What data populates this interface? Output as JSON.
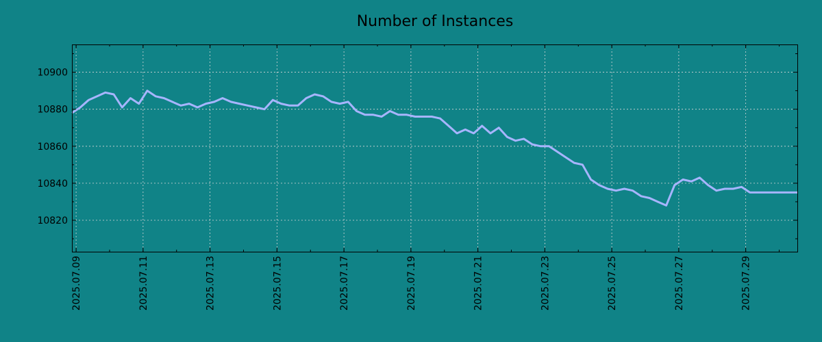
{
  "chart_data": {
    "type": "line",
    "title": "Number of Instances",
    "xlabel": "",
    "ylabel": "",
    "grid": true,
    "colors": {
      "background": "#108387",
      "line": "#a7b5ff",
      "grid": "#d8d8d8"
    },
    "ylim": [
      10803,
      10915
    ],
    "yticks": [
      10820,
      10840,
      10860,
      10880,
      10900
    ],
    "xlim": [
      "2025-07-08 21:00",
      "2025-07-30 13:00"
    ],
    "xticks": [
      "2025.07.09",
      "2025.07.11",
      "2025.07.13",
      "2025.07.15",
      "2025.07.17",
      "2025.07.19",
      "2025.07.21",
      "2025.07.23",
      "2025.07.25",
      "2025.07.27",
      "2025.07.29"
    ],
    "series": [
      {
        "x": [
          "2025-07-08 21:00",
          "2025-07-09 03:00",
          "2025-07-09 09:00",
          "2025-07-09 15:00",
          "2025-07-09 21:00",
          "2025-07-10 03:00",
          "2025-07-10 09:00",
          "2025-07-10 15:00",
          "2025-07-10 21:00",
          "2025-07-11 03:00",
          "2025-07-11 09:00",
          "2025-07-11 15:00",
          "2025-07-11 21:00",
          "2025-07-12 03:00",
          "2025-07-12 09:00",
          "2025-07-12 15:00",
          "2025-07-12 21:00",
          "2025-07-13 03:00",
          "2025-07-13 09:00",
          "2025-07-13 15:00",
          "2025-07-13 21:00",
          "2025-07-14 03:00",
          "2025-07-14 09:00",
          "2025-07-14 15:00",
          "2025-07-14 21:00",
          "2025-07-15 03:00",
          "2025-07-15 09:00",
          "2025-07-15 15:00",
          "2025-07-15 21:00",
          "2025-07-16 03:00",
          "2025-07-16 09:00",
          "2025-07-16 15:00",
          "2025-07-16 21:00",
          "2025-07-17 03:00",
          "2025-07-17 09:00",
          "2025-07-17 15:00",
          "2025-07-17 21:00",
          "2025-07-18 03:00",
          "2025-07-18 09:00",
          "2025-07-18 15:00",
          "2025-07-18 21:00",
          "2025-07-19 03:00",
          "2025-07-19 09:00",
          "2025-07-19 15:00",
          "2025-07-19 21:00",
          "2025-07-20 03:00",
          "2025-07-20 09:00",
          "2025-07-20 15:00",
          "2025-07-20 21:00",
          "2025-07-21 03:00",
          "2025-07-21 09:00",
          "2025-07-21 15:00",
          "2025-07-21 21:00",
          "2025-07-22 03:00",
          "2025-07-22 09:00",
          "2025-07-22 15:00",
          "2025-07-22 21:00",
          "2025-07-23 03:00",
          "2025-07-23 09:00",
          "2025-07-23 15:00",
          "2025-07-23 21:00",
          "2025-07-24 03:00",
          "2025-07-24 09:00",
          "2025-07-24 15:00",
          "2025-07-24 21:00",
          "2025-07-25 03:00",
          "2025-07-25 09:00",
          "2025-07-25 15:00",
          "2025-07-25 21:00",
          "2025-07-26 03:00",
          "2025-07-26 09:00",
          "2025-07-26 15:00",
          "2025-07-26 21:00",
          "2025-07-27 03:00",
          "2025-07-27 09:00",
          "2025-07-27 15:00",
          "2025-07-27 21:00",
          "2025-07-28 03:00",
          "2025-07-28 09:00",
          "2025-07-28 15:00",
          "2025-07-28 21:00",
          "2025-07-29 03:00",
          "2025-07-29 09:00",
          "2025-07-29 15:00",
          "2025-07-29 21:00",
          "2025-07-30 03:00",
          "2025-07-30 09:00",
          "2025-07-30 13:00"
        ],
        "values": [
          10878,
          10881,
          10885,
          10887,
          10889,
          10888,
          10881,
          10886,
          10883,
          10890,
          10887,
          10886,
          10884,
          10882,
          10883,
          10881,
          10883,
          10884,
          10886,
          10884,
          10883,
          10882,
          10881,
          10880,
          10885,
          10883,
          10882,
          10882,
          10886,
          10888,
          10887,
          10884,
          10883,
          10884,
          10879,
          10877,
          10877,
          10876,
          10879,
          10877,
          10877,
          10876,
          10876,
          10876,
          10875,
          10871,
          10867,
          10869,
          10867,
          10871,
          10867,
          10870,
          10865,
          10863,
          10864,
          10861,
          10860,
          10860,
          10857,
          10854,
          10851,
          10850,
          10842,
          10839,
          10837,
          10836,
          10837,
          10836,
          10833,
          10832,
          10830,
          10828,
          10839,
          10842,
          10841,
          10843,
          10839,
          10836,
          10837,
          10837,
          10838,
          10835,
          10835,
          10835,
          10835,
          10835,
          10835,
          10835
        ]
      }
    ]
  }
}
